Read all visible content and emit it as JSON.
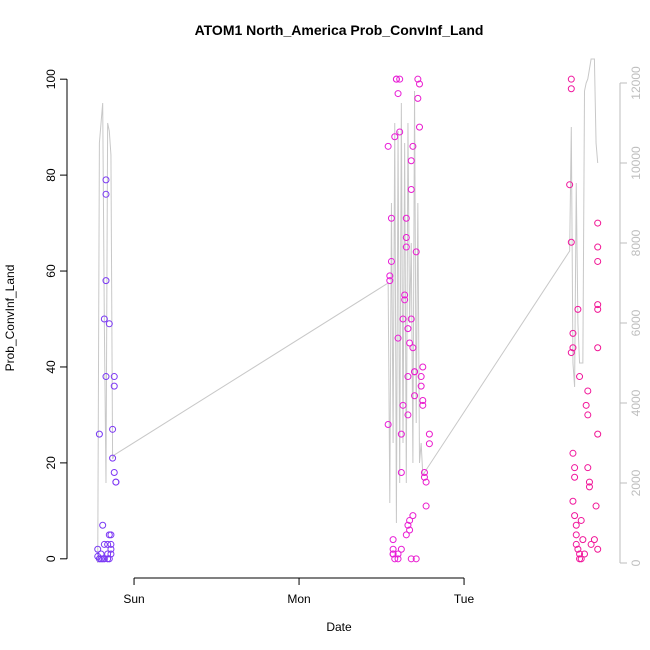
{
  "chart_data": {
    "type": "scatter",
    "title": "ATOM1 North_America Prob_ConvInf_Land",
    "x_label": "Date",
    "y_label": "Prob_ConvInf_Land",
    "x": [
      0.78,
      0.78,
      0.79,
      0.79,
      0.8,
      0.8,
      0.81,
      0.81,
      0.82,
      0.82,
      0.83,
      0.83,
      0.83,
      0.83,
      0.84,
      0.84,
      0.85,
      0.85,
      0.85,
      0.86,
      0.86,
      0.86,
      0.86,
      0.87,
      0.87,
      0.88,
      0.88,
      0.88,
      0.89,
      0.89,
      0.84,
      0.82,
      2.54,
      2.54,
      2.55,
      2.55,
      2.56,
      2.56,
      2.57,
      2.57,
      2.57,
      2.58,
      2.59,
      2.59,
      2.6,
      2.6,
      2.6,
      2.61,
      2.61,
      2.62,
      2.62,
      2.63,
      2.63,
      2.64,
      2.64,
      2.65,
      2.65,
      2.65,
      2.66,
      2.66,
      2.66,
      2.67,
      2.67,
      2.67,
      2.68,
      2.68,
      2.68,
      2.69,
      2.69,
      2.7,
      2.7,
      2.7,
      2.71,
      2.72,
      2.72,
      2.73,
      2.73,
      2.74,
      2.74,
      2.75,
      2.75,
      2.75,
      2.76,
      2.76,
      2.77,
      2.77,
      2.79,
      2.79,
      2.58,
      2.6,
      2.62,
      2.65,
      2.68,
      2.66,
      2.69,
      2.71,
      2.57,
      3.64,
      3.65,
      3.65,
      3.65,
      3.65,
      3.66,
      3.66,
      3.66,
      3.66,
      3.67,
      3.67,
      3.67,
      3.68,
      3.68,
      3.68,
      3.69,
      3.7,
      3.7,
      3.69,
      3.7,
      3.71,
      3.71,
      3.72,
      3.74,
      3.75,
      3.75,
      3.75,
      3.76,
      3.76,
      3.81,
      3.81,
      3.81,
      3.81,
      3.81,
      3.81,
      3.81,
      3.8,
      3.79,
      3.81,
      3.77,
      3.73
    ],
    "values": [
      0.5,
      2,
      26,
      0,
      1,
      0,
      7,
      0,
      50,
      3,
      58,
      79,
      76,
      38,
      0,
      3,
      5,
      0,
      49,
      5,
      3,
      1,
      2,
      27,
      21,
      38,
      36,
      18,
      16,
      16,
      1,
      0,
      28,
      86,
      59,
      58,
      62,
      71,
      2,
      1,
      4,
      88,
      100,
      100,
      97,
      0,
      46,
      89,
      100,
      26,
      18,
      32,
      50,
      55,
      54,
      65,
      67,
      71,
      48,
      38,
      30,
      6,
      8,
      45,
      50,
      77,
      83,
      86,
      44,
      34,
      39,
      39,
      64,
      100,
      96,
      99,
      90,
      38,
      36,
      33,
      32,
      40,
      18,
      17,
      11,
      16,
      26,
      24,
      0,
      1,
      2,
      5,
      0,
      7,
      9,
      0,
      1,
      78,
      66,
      100,
      98,
      43,
      44,
      47,
      22,
      12,
      17,
      19,
      9,
      7,
      5,
      3,
      2,
      0,
      1,
      52,
      38,
      0,
      8,
      4,
      32,
      35,
      30,
      19,
      16,
      15,
      70,
      65,
      62,
      53,
      52,
      44,
      26,
      11,
      4,
      2,
      3,
      1
    ],
    "point_colors": [
      "#6b3cf6",
      "#e61ee6",
      "#f2158f"
    ],
    "xlim": [
      0.624,
      3.933
    ],
    "xticks": [
      {
        "value": 1,
        "label": "Sun"
      },
      {
        "value": 2,
        "label": "Mon"
      },
      {
        "value": 3,
        "label": "Tue"
      }
    ],
    "ylim": [
      -4,
      104
    ],
    "yticks": [
      0,
      20,
      40,
      60,
      80,
      100
    ],
    "y2lim": [
      -375,
      12575
    ],
    "y2ticks": [
      0,
      2000,
      4000,
      6000,
      8000,
      10000,
      12000
    ],
    "y2_axis_color": "#bebebe",
    "line": {
      "axis": "y2",
      "color": "#c8c8c8",
      "x": [
        0.78,
        0.79,
        0.8,
        0.81,
        0.82,
        0.83,
        0.84,
        0.85,
        0.86,
        0.87,
        0.88,
        2.54,
        2.55,
        2.56,
        2.57,
        2.58,
        2.59,
        2.6,
        2.61,
        2.62,
        2.63,
        2.64,
        2.65,
        2.66,
        2.67,
        2.68,
        2.69,
        2.7,
        2.71,
        2.72,
        2.73,
        2.74,
        2.75,
        3.64,
        3.65,
        3.66,
        3.67,
        3.68,
        3.69,
        3.7,
        3.72,
        3.73,
        3.74,
        3.75,
        3.77,
        3.79,
        3.8,
        3.81
      ],
      "values": [
        0,
        10500,
        11000,
        11500,
        6000,
        2000,
        11000,
        10800,
        10200,
        2600,
        2700,
        7000,
        1500,
        9000,
        3000,
        11000,
        1000,
        10800,
        2000,
        11500,
        3000,
        10500,
        2000,
        11000,
        6000,
        8000,
        2500,
        11800,
        3500,
        9000,
        2500,
        3000,
        2200,
        7800,
        10900,
        5000,
        4400,
        9500,
        6000,
        5000,
        5000,
        11800,
        12000,
        12100,
        12600,
        12600,
        10500,
        10000
      ]
    }
  }
}
